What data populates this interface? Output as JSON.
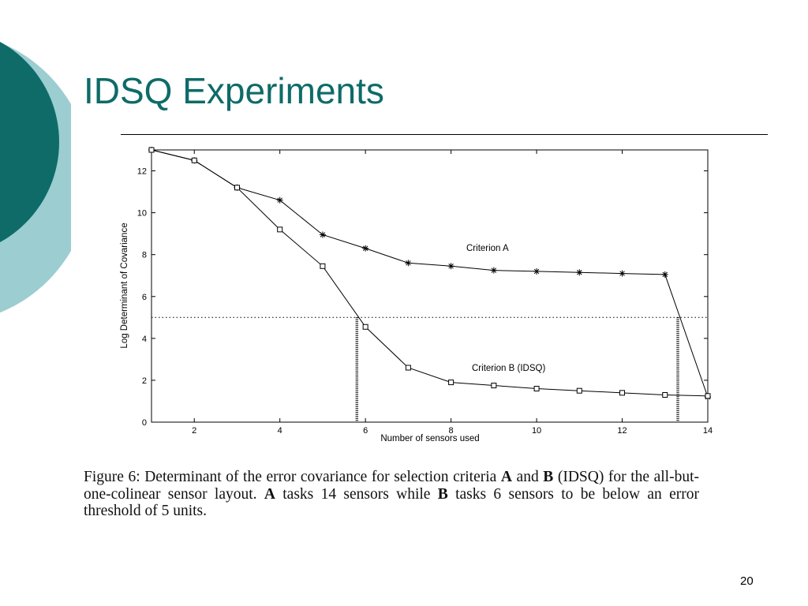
{
  "slide": {
    "title": "IDSQ Experiments",
    "page_number": "20",
    "accent_color": "#0e6b68",
    "accent_light_color": "#9ccdd0"
  },
  "caption": {
    "p1": "Figure 6:  Determinant of the error covariance for selection criteria ",
    "b1": "A",
    "p2": " and ",
    "b2": "B",
    "p3": " (IDSQ) for the all-but-one-colinear sensor layout. ",
    "b3": "A",
    "p4": " tasks 14 sensors while ",
    "b4": "B",
    "p5": " tasks 6 sensors to be below an error threshold of 5 units."
  },
  "chart_data": {
    "type": "line",
    "xlabel": "Number of sensors used",
    "ylabel": "Log Determinant of Covariance",
    "xlim": [
      1,
      14
    ],
    "ylim": [
      0,
      13
    ],
    "xticks": [
      2,
      4,
      6,
      8,
      10,
      12,
      14
    ],
    "yticks": [
      0,
      2,
      4,
      6,
      8,
      10,
      12
    ],
    "grid": false,
    "threshold": 5,
    "crossings": [
      5.8,
      13.3
    ],
    "x": [
      1,
      2,
      3,
      4,
      5,
      6,
      7,
      8,
      9,
      10,
      11,
      12,
      13,
      14
    ],
    "series": [
      {
        "name": "Criterion A",
        "marker": "asterisk",
        "values": [
          13.0,
          12.5,
          11.2,
          10.6,
          8.95,
          8.3,
          7.6,
          7.45,
          7.25,
          7.2,
          7.15,
          7.1,
          7.05,
          1.2
        ]
      },
      {
        "name": "Criterion B (IDSQ)",
        "marker": "square",
        "values": [
          13.0,
          12.5,
          11.2,
          9.2,
          7.45,
          4.55,
          2.6,
          1.9,
          1.75,
          1.6,
          1.5,
          1.4,
          1.3,
          1.25
        ]
      }
    ]
  }
}
